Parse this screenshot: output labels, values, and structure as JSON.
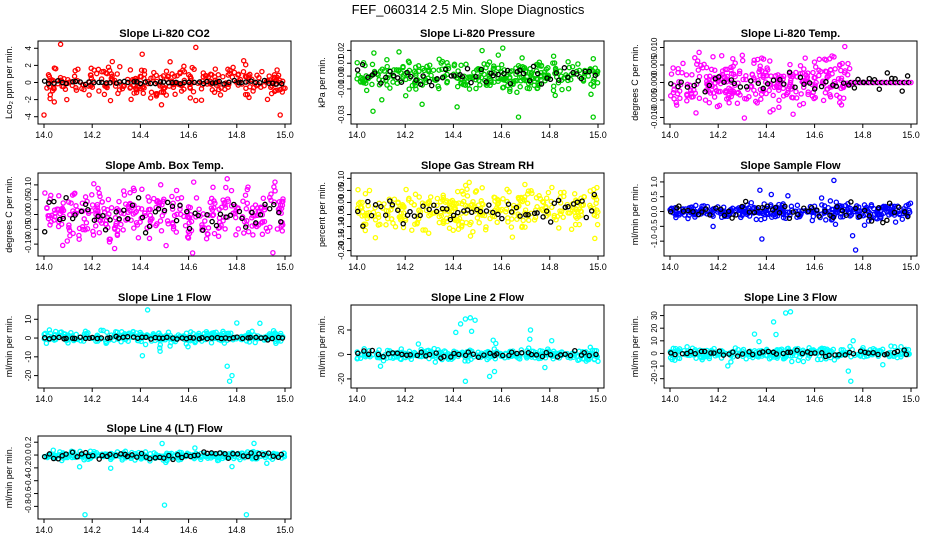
{
  "figure": {
    "title": "FEF_060314  2.5 Min. Slope Diagnostics"
  },
  "chart_data": [
    {
      "type": "scatter",
      "title": "Slope Li-820 CO2",
      "ylabel": "Lco₂ ppm per min.",
      "xlabel": "",
      "xlim": [
        14.0,
        15.0
      ],
      "ylim": [
        -4.5,
        4.5
      ],
      "xticks": [
        "14.0",
        "14.2",
        "14.4",
        "14.6",
        "14.8",
        "15.0"
      ],
      "yticks": [
        {
          "v": -4,
          "label": "-4"
        },
        {
          "v": -2,
          "label": "-2"
        },
        {
          "v": 0,
          "label": "0"
        },
        {
          "v": 2,
          "label": "2"
        },
        {
          "v": 4,
          "label": "4"
        }
      ],
      "colors": {
        "points": "#ff0000",
        "overlay": "#000000"
      },
      "noise": {
        "seed": 11,
        "count": 300,
        "sd": 0.9,
        "center": 0.1,
        "spike_frac": 0.05,
        "spike_sd": 2.2
      },
      "overlay_series": {
        "name": "overlay",
        "seed": 12,
        "count": 55,
        "sd": 0.12,
        "center": 0.0
      },
      "extra_points": [
        [
          14.63,
          4.1
        ],
        [
          14.63,
          -2.1
        ],
        [
          14.98,
          -3.8
        ],
        [
          14.0,
          -3.8
        ]
      ]
    },
    {
      "type": "scatter",
      "title": "Slope Li-820 Pressure",
      "ylabel": "kPa per min.",
      "xlabel": "",
      "xlim": [
        14.0,
        15.0
      ],
      "ylim": [
        -0.035,
        0.025
      ],
      "xticks": [
        "14.0",
        "14.2",
        "14.4",
        "14.6",
        "14.8",
        "15.0"
      ],
      "yticks": [
        {
          "v": -0.03,
          "label": "-0.03"
        },
        {
          "v": -0.01,
          "label": "-0.01"
        },
        {
          "v": 0.0,
          "label": "0.00"
        },
        {
          "v": 0.01,
          "label": "0.01"
        },
        {
          "v": 0.02,
          "label": "0.02"
        }
      ],
      "colors": {
        "points": "#00cc00",
        "overlay": "#000000"
      },
      "noise": {
        "seed": 21,
        "count": 320,
        "sd": 0.006,
        "center": 0.0,
        "spike_frac": 0.08,
        "spike_sd": 0.015
      },
      "overlay_series": {
        "name": "overlay",
        "seed": 22,
        "count": 55,
        "sd": 0.004,
        "center": 0.0
      },
      "extra_points": [
        [
          14.07,
          0.018
        ],
        [
          14.27,
          -0.022
        ],
        [
          14.67,
          -0.032
        ],
        [
          14.98,
          -0.032
        ]
      ]
    },
    {
      "type": "scatter",
      "title": "Slope Li-820 Temp.",
      "ylabel": "degrees C per min.",
      "xlabel": "",
      "xlim": [
        14.0,
        15.0
      ],
      "ylim": [
        -0.011,
        0.011
      ],
      "xticks": [
        "14.0",
        "14.2",
        "14.4",
        "14.6",
        "14.8",
        "15.0"
      ],
      "yticks": [
        {
          "v": -0.01,
          "label": "-0.010"
        },
        {
          "v": -0.005,
          "label": "-0.005"
        },
        {
          "v": 0,
          "label": "0.000"
        },
        {
          "v": 0.005,
          "label": "0.005"
        },
        {
          "v": 0.01,
          "label": "0.010"
        }
      ],
      "colors": {
        "points": "#ff00ff",
        "overlay": "#000000"
      },
      "noise": {
        "seed": 31,
        "count": 320,
        "sd": 0.0035,
        "center": 0.0,
        "spike_frac": 0.04,
        "spike_sd": 0.006,
        "xmax": 14.75
      },
      "overlay_series": {
        "name": "overlay",
        "seed": 32,
        "count": 45,
        "sd": 0.0015,
        "center": 0.0
      },
      "flat_segment": {
        "x0": 14.75,
        "x1": 15.0,
        "y": 0.0,
        "count": 28
      }
    },
    {
      "type": "scatter",
      "title": "Slope Amb. Box Temp.",
      "ylabel": "degrees C per min.",
      "xlabel": "",
      "xlim": [
        14.0,
        15.0
      ],
      "ylim": [
        -0.13,
        0.13
      ],
      "xticks": [
        "14.0",
        "14.2",
        "14.4",
        "14.6",
        "14.8",
        "15.0"
      ],
      "yticks": [
        {
          "v": -0.1,
          "label": "-0.10"
        },
        {
          "v": -0.05,
          "label": "-0.05"
        },
        {
          "v": 0,
          "label": "0.00"
        },
        {
          "v": 0.05,
          "label": "0.05"
        },
        {
          "v": 0.1,
          "label": "0.10"
        }
      ],
      "colors": {
        "points": "#ff00ff",
        "overlay": "#000000"
      },
      "noise": {
        "seed": 41,
        "count": 340,
        "sd": 0.045,
        "center": 0.0,
        "spike_frac": 0.03,
        "spike_sd": 0.07
      },
      "overlay_series": {
        "name": "overlay",
        "seed": 42,
        "count": 55,
        "sd": 0.03,
        "center": 0.0
      }
    },
    {
      "type": "scatter",
      "title": "Slope Gas Stream RH",
      "ylabel": "percent per min.",
      "xlabel": "",
      "xlim": [
        14.0,
        15.0
      ],
      "ylim": [
        -0.21,
        0.11
      ],
      "xticks": [
        "14.0",
        "14.2",
        "14.4",
        "14.6",
        "14.8",
        "15.0"
      ],
      "yticks": [
        {
          "v": -0.2,
          "label": "-0.20"
        },
        {
          "v": -0.15,
          "label": "-0.15"
        },
        {
          "v": -0.1,
          "label": "-0.10"
        },
        {
          "v": -0.05,
          "label": "-0.05"
        },
        {
          "v": 0,
          "label": "0.00"
        },
        {
          "v": 0.05,
          "label": "0.05"
        },
        {
          "v": 0.1,
          "label": "0.10"
        }
      ],
      "colors": {
        "points": "#ffff00",
        "overlay": "#000000"
      },
      "noise": {
        "seed": 51,
        "count": 340,
        "sd": 0.045,
        "center": -0.035,
        "spike_frac": 0.02,
        "spike_sd": 0.08
      },
      "overlay_series": {
        "name": "overlay",
        "seed": 52,
        "count": 55,
        "sd": 0.025,
        "center": -0.035
      }
    },
    {
      "type": "scatter",
      "title": "Slope Sample Flow",
      "ylabel": "ml/min per min.",
      "xlabel": "",
      "xlim": [
        14.0,
        15.0
      ],
      "ylim": [
        -1.4,
        1.2
      ],
      "xticks": [
        "14.0",
        "14.2",
        "14.4",
        "14.6",
        "14.8",
        "15.0"
      ],
      "yticks": [
        {
          "v": -1,
          "label": "-1.0"
        },
        {
          "v": -0.5,
          "label": "-0.5"
        },
        {
          "v": 0,
          "label": "0.0"
        },
        {
          "v": 0.5,
          "label": "0.5"
        },
        {
          "v": 1,
          "label": "1.0"
        }
      ],
      "colors": {
        "points": "#0000ff",
        "overlay": "#000000"
      },
      "noise": {
        "seed": 61,
        "count": 340,
        "sd": 0.12,
        "center": 0.0,
        "spike_frac": 0.06,
        "spike_sd": 0.45
      },
      "overlay_series": {
        "name": "overlay",
        "seed": 62,
        "count": 55,
        "sd": 0.15,
        "center": 0.0
      },
      "extra_points": [
        [
          14.68,
          1.05
        ],
        [
          14.77,
          -1.3
        ]
      ]
    },
    {
      "type": "scatter",
      "title": "Slope Line 1 Flow",
      "ylabel": "ml/min per min.",
      "xlabel": "",
      "xlim": [
        14.0,
        15.0
      ],
      "ylim": [
        -25,
        16
      ],
      "xticks": [
        "14.0",
        "14.2",
        "14.4",
        "14.6",
        "14.8",
        "15.0"
      ],
      "yticks": [
        {
          "v": -20,
          "label": "-20"
        },
        {
          "v": -10,
          "label": "-10"
        },
        {
          "v": 0,
          "label": "0"
        },
        {
          "v": 10,
          "label": "10"
        }
      ],
      "colors": {
        "points": "#00ffff",
        "overlay": "#000000"
      },
      "noise": {
        "seed": 71,
        "count": 320,
        "sd": 1.5,
        "center": 0.5,
        "spike_frac": 0.04,
        "spike_sd": 6
      },
      "overlay_series": {
        "name": "overlay",
        "seed": 72,
        "count": 55,
        "sd": 0.3,
        "center": 0.0
      },
      "extra_points": [
        [
          14.43,
          15
        ],
        [
          14.77,
          -23
        ],
        [
          14.78,
          -20
        ],
        [
          14.76,
          -15
        ],
        [
          14.8,
          8
        ]
      ]
    },
    {
      "type": "scatter",
      "title": "Slope Line 2 Flow",
      "ylabel": "ml/min per min.",
      "xlabel": "",
      "xlim": [
        14.0,
        15.0
      ],
      "ylim": [
        -25,
        38
      ],
      "xticks": [
        "14.0",
        "14.2",
        "14.4",
        "14.6",
        "14.8",
        "15.0"
      ],
      "yticks": [
        {
          "v": -20,
          "label": "-20"
        },
        {
          "v": 0,
          "label": "0"
        },
        {
          "v": 20,
          "label": "20"
        }
      ],
      "colors": {
        "points": "#00ffff",
        "overlay": "#000000"
      },
      "noise": {
        "seed": 81,
        "count": 320,
        "sd": 2.2,
        "center": 0.0,
        "spike_frac": 0.05,
        "spike_sd": 8
      },
      "overlay_series": {
        "name": "overlay",
        "seed": 82,
        "count": 50,
        "sd": 1.2,
        "center": 0.0
      },
      "extra_points": [
        [
          14.43,
          25
        ],
        [
          14.45,
          29
        ],
        [
          14.47,
          30
        ],
        [
          14.49,
          28
        ],
        [
          14.41,
          18
        ],
        [
          14.45,
          -22
        ],
        [
          14.55,
          -18
        ],
        [
          14.72,
          20
        ]
      ]
    },
    {
      "type": "scatter",
      "title": "Slope Line 3 Flow",
      "ylabel": "ml/min per min.",
      "xlabel": "",
      "xlim": [
        14.0,
        15.0
      ],
      "ylim": [
        -25,
        36
      ],
      "xticks": [
        "14.0",
        "14.2",
        "14.4",
        "14.6",
        "14.8",
        "15.0"
      ],
      "yticks": [
        {
          "v": -20,
          "label": "-20"
        },
        {
          "v": -10,
          "label": "-10"
        },
        {
          "v": 0,
          "label": "0"
        },
        {
          "v": 10,
          "label": "10"
        },
        {
          "v": 20,
          "label": "20"
        },
        {
          "v": 30,
          "label": "30"
        }
      ],
      "colors": {
        "points": "#00ffff",
        "overlay": "#000000"
      },
      "noise": {
        "seed": 91,
        "count": 320,
        "sd": 2.2,
        "center": 0.0,
        "spike_frac": 0.05,
        "spike_sd": 8
      },
      "overlay_series": {
        "name": "overlay",
        "seed": 92,
        "count": 50,
        "sd": 1.2,
        "center": 0.0
      },
      "extra_points": [
        [
          14.43,
          25
        ],
        [
          14.48,
          32
        ],
        [
          14.5,
          33
        ],
        [
          14.44,
          15
        ],
        [
          14.75,
          -22
        ],
        [
          14.74,
          -14
        ],
        [
          14.76,
          10
        ]
      ]
    },
    {
      "type": "scatter",
      "title": "Slope Line 4 (LT) Flow",
      "ylabel": "ml/min per min.",
      "xlabel": "",
      "xlim": [
        14.0,
        15.0
      ],
      "ylim": [
        -0.95,
        0.25
      ],
      "xticks": [
        "14.0",
        "14.2",
        "14.4",
        "14.6",
        "14.8",
        "15.0"
      ],
      "yticks": [
        {
          "v": -0.8,
          "label": "-0.8"
        },
        {
          "v": -0.6,
          "label": "-0.6"
        },
        {
          "v": -0.4,
          "label": "-0.4"
        },
        {
          "v": -0.2,
          "label": "-0.2"
        },
        {
          "v": 0,
          "label": "0.0"
        },
        {
          "v": 0.2,
          "label": "0.2"
        }
      ],
      "colors": {
        "points": "#00ffff",
        "overlay": "#000000"
      },
      "noise": {
        "seed": 101,
        "count": 320,
        "sd": 0.03,
        "center": -0.01,
        "spike_frac": 0.04,
        "spike_sd": 0.1
      },
      "overlay_series": {
        "name": "overlay",
        "seed": 102,
        "count": 55,
        "sd": 0.025,
        "center": -0.01
      },
      "extra_points": [
        [
          14.17,
          -0.93
        ],
        [
          14.5,
          -0.78
        ],
        [
          14.84,
          -0.93
        ],
        [
          14.49,
          0.18
        ],
        [
          14.78,
          -0.18
        ]
      ]
    }
  ]
}
